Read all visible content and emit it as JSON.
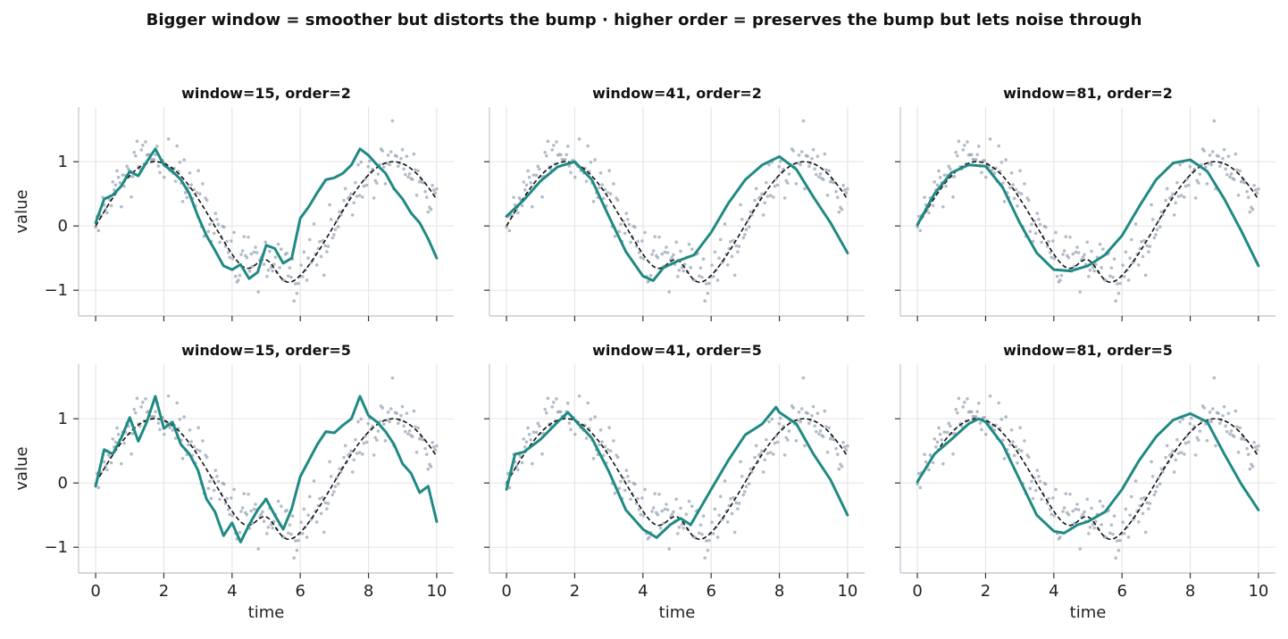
{
  "figure": {
    "suptitle": "Bigger window = smoother but distorts the bump · higher order = preserves the bump but lets noise through"
  },
  "colors": {
    "smoothed": "#1f8a84",
    "true_signal": "#111111",
    "raw_points": "#9aa6b4",
    "grid": "#e6e6e6",
    "axis": "#c7ccd6"
  },
  "chart_data": [
    {
      "type": "line",
      "title": "window=15, order=2",
      "window": 15,
      "order": 2,
      "xlabel": "",
      "ylabel": "value",
      "xlim": [
        -0.5,
        10.5
      ],
      "ylim": [
        -1.4,
        1.85
      ],
      "xticks": [
        0,
        2,
        4,
        6,
        8,
        10
      ],
      "yticks": [
        -1,
        0,
        1
      ],
      "ytick_labels": [
        "−1",
        "0",
        "1"
      ],
      "xtick_labels": [],
      "grid": true,
      "smoothed": {
        "x": [
          0,
          0.25,
          0.5,
          0.75,
          1,
          1.25,
          1.5,
          1.75,
          2,
          2.25,
          2.5,
          2.75,
          3,
          3.25,
          3.5,
          3.75,
          4,
          4.25,
          4.5,
          4.75,
          5,
          5.25,
          5.5,
          5.75,
          6,
          6.25,
          6.5,
          6.75,
          7,
          7.25,
          7.5,
          7.75,
          8,
          8.25,
          8.5,
          8.75,
          9,
          9.25,
          9.5,
          9.75,
          10
        ],
        "y": [
          0.05,
          0.42,
          0.48,
          0.62,
          0.85,
          0.78,
          1.0,
          1.2,
          0.95,
          0.85,
          0.72,
          0.5,
          0.15,
          -0.15,
          -0.38,
          -0.62,
          -0.68,
          -0.6,
          -0.82,
          -0.72,
          -0.3,
          -0.35,
          -0.58,
          -0.5,
          0.12,
          0.3,
          0.52,
          0.72,
          0.75,
          0.82,
          0.95,
          1.2,
          1.1,
          0.95,
          0.82,
          0.58,
          0.42,
          0.2,
          0.05,
          -0.2,
          -0.5
        ]
      }
    },
    {
      "type": "line",
      "title": "window=41, order=2",
      "window": 41,
      "order": 2,
      "xlabel": "",
      "ylabel": "",
      "xlim": [
        -0.5,
        10.5
      ],
      "ylim": [
        -1.4,
        1.85
      ],
      "xticks": [
        0,
        2,
        4,
        6,
        8,
        10
      ],
      "yticks": [
        -1,
        0,
        1
      ],
      "ytick_labels": [],
      "xtick_labels": [],
      "grid": true,
      "smoothed": {
        "x": [
          0,
          0.5,
          1,
          1.5,
          2,
          2.5,
          3,
          3.5,
          4,
          4.3,
          4.6,
          5,
          5.5,
          6,
          6.5,
          7,
          7.5,
          8,
          8.5,
          9,
          9.5,
          10
        ],
        "y": [
          0.15,
          0.4,
          0.7,
          0.92,
          1.0,
          0.72,
          0.15,
          -0.4,
          -0.78,
          -0.85,
          -0.65,
          -0.55,
          -0.45,
          -0.1,
          0.35,
          0.72,
          0.95,
          1.08,
          0.88,
          0.45,
          0.05,
          -0.42
        ]
      }
    },
    {
      "type": "line",
      "title": "window=81, order=2",
      "window": 81,
      "order": 2,
      "xlabel": "",
      "ylabel": "",
      "xlim": [
        -0.5,
        10.5
      ],
      "ylim": [
        -1.4,
        1.85
      ],
      "xticks": [
        0,
        2,
        4,
        6,
        8,
        10
      ],
      "yticks": [
        -1,
        0,
        1
      ],
      "ytick_labels": [],
      "xtick_labels": [],
      "grid": true,
      "smoothed": {
        "x": [
          0,
          0.5,
          1,
          1.5,
          2,
          2.5,
          3,
          3.5,
          4,
          4.5,
          5,
          5.5,
          6,
          6.5,
          7,
          7.5,
          8,
          8.5,
          9,
          9.5,
          10
        ],
        "y": [
          0.02,
          0.5,
          0.83,
          0.95,
          0.93,
          0.6,
          0.05,
          -0.42,
          -0.68,
          -0.7,
          -0.62,
          -0.45,
          -0.15,
          0.3,
          0.72,
          0.98,
          1.03,
          0.85,
          0.42,
          -0.08,
          -0.62
        ]
      }
    },
    {
      "type": "line",
      "title": "window=15, order=5",
      "window": 15,
      "order": 5,
      "xlabel": "time",
      "ylabel": "value",
      "xlim": [
        -0.5,
        10.5
      ],
      "ylim": [
        -1.4,
        1.85
      ],
      "xticks": [
        0,
        2,
        4,
        6,
        8,
        10
      ],
      "yticks": [
        -1,
        0,
        1
      ],
      "ytick_labels": [
        "−1",
        "0",
        "1"
      ],
      "xtick_labels": [
        "0",
        "2",
        "4",
        "6",
        "8",
        "10"
      ],
      "grid": true,
      "smoothed": {
        "x": [
          0,
          0.25,
          0.5,
          0.75,
          1,
          1.25,
          1.5,
          1.75,
          2,
          2.25,
          2.5,
          2.75,
          3,
          3.25,
          3.5,
          3.75,
          4,
          4.25,
          4.5,
          4.75,
          5,
          5.25,
          5.5,
          5.75,
          6,
          6.25,
          6.5,
          6.75,
          7,
          7.25,
          7.5,
          7.75,
          8,
          8.25,
          8.5,
          8.75,
          9,
          9.25,
          9.5,
          9.75,
          10
        ],
        "y": [
          -0.05,
          0.52,
          0.45,
          0.7,
          1.02,
          0.65,
          0.95,
          1.35,
          0.85,
          0.95,
          0.6,
          0.45,
          0.2,
          -0.25,
          -0.45,
          -0.82,
          -0.62,
          -0.92,
          -0.65,
          -0.42,
          -0.25,
          -0.5,
          -0.72,
          -0.4,
          0.1,
          0.35,
          0.6,
          0.8,
          0.78,
          0.9,
          1.0,
          1.35,
          1.05,
          0.95,
          0.8,
          0.6,
          0.3,
          0.15,
          -0.15,
          -0.05,
          -0.6
        ]
      }
    },
    {
      "type": "line",
      "title": "window=41, order=5",
      "window": 41,
      "order": 5,
      "xlabel": "time",
      "ylabel": "",
      "xlim": [
        -0.5,
        10.5
      ],
      "ylim": [
        -1.4,
        1.85
      ],
      "xticks": [
        0,
        2,
        4,
        6,
        8,
        10
      ],
      "yticks": [
        -1,
        0,
        1
      ],
      "ytick_labels": [],
      "xtick_labels": [
        "0",
        "2",
        "4",
        "6",
        "8",
        "10"
      ],
      "grid": true,
      "smoothed": {
        "x": [
          0,
          0.25,
          0.5,
          1,
          1.5,
          1.8,
          2,
          2.5,
          3,
          3.5,
          4,
          4.4,
          4.8,
          5.1,
          5.4,
          6,
          6.5,
          7,
          7.5,
          7.9,
          8,
          8.5,
          9,
          9.5,
          10
        ],
        "y": [
          -0.1,
          0.45,
          0.48,
          0.68,
          0.95,
          1.1,
          0.98,
          0.7,
          0.18,
          -0.42,
          -0.72,
          -0.85,
          -0.65,
          -0.55,
          -0.65,
          -0.1,
          0.35,
          0.75,
          0.92,
          1.18,
          1.1,
          0.92,
          0.45,
          0.05,
          -0.5
        ]
      }
    },
    {
      "type": "line",
      "title": "window=81, order=5",
      "window": 81,
      "order": 5,
      "xlabel": "time",
      "ylabel": "",
      "xlim": [
        -0.5,
        10.5
      ],
      "ylim": [
        -1.4,
        1.85
      ],
      "xticks": [
        0,
        2,
        4,
        6,
        8,
        10
      ],
      "yticks": [
        -1,
        0,
        1
      ],
      "ytick_labels": [],
      "xtick_labels": [
        "0",
        "2",
        "4",
        "6",
        "8",
        "10"
      ],
      "grid": true,
      "smoothed": {
        "x": [
          0,
          0.5,
          1,
          1.5,
          1.8,
          2,
          2.5,
          3,
          3.5,
          4,
          4.3,
          4.7,
          5,
          5.5,
          6,
          6.5,
          7,
          7.5,
          8,
          8.5,
          9,
          9.5,
          10
        ],
        "y": [
          0.02,
          0.45,
          0.68,
          0.92,
          1.0,
          0.95,
          0.6,
          0.05,
          -0.5,
          -0.75,
          -0.78,
          -0.65,
          -0.6,
          -0.45,
          -0.1,
          0.35,
          0.72,
          0.98,
          1.08,
          0.95,
          0.45,
          -0.02,
          -0.42
        ]
      }
    }
  ]
}
